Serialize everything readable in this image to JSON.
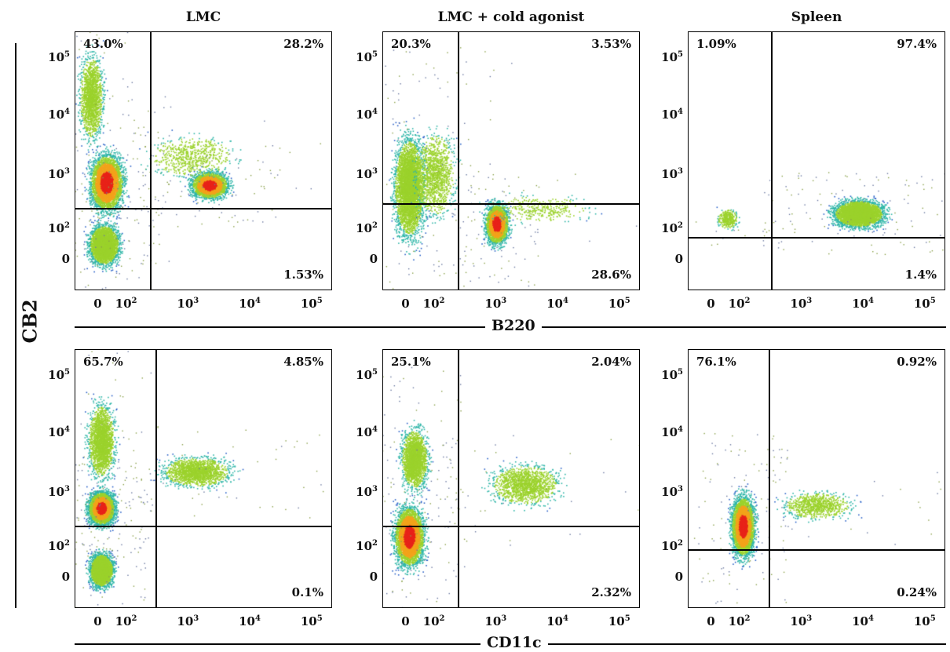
{
  "columns": [
    "LMC",
    "LMC + cold agonist",
    "Spleen"
  ],
  "y_axis_label": "CB2",
  "row_axis_labels": [
    "B220",
    "CD11c"
  ],
  "y_ticks": [
    "10",
    "10",
    "10",
    "10",
    "0"
  ],
  "y_tick_exps": [
    "5",
    "4",
    "3",
    "2",
    ""
  ],
  "x_ticks": [
    "0",
    "10",
    "10",
    "10",
    "10"
  ],
  "x_tick_exps": [
    "",
    "2",
    "3",
    "4",
    "5"
  ],
  "panels": [
    {
      "row": 0,
      "col": 0,
      "ul": "43.0%",
      "ur": "28.2%",
      "lr": "1.53%"
    },
    {
      "row": 0,
      "col": 1,
      "ul": "20.3%",
      "ur": "3.53%",
      "lr": "28.6%"
    },
    {
      "row": 0,
      "col": 2,
      "ul": "1.09%",
      "ur": "97.4%",
      "lr": "1.4%"
    },
    {
      "row": 1,
      "col": 0,
      "ul": "65.7%",
      "ur": "4.85%",
      "lr": "0.1%"
    },
    {
      "row": 1,
      "col": 1,
      "ul": "25.1%",
      "ur": "2.04%",
      "lr": "2.32%"
    },
    {
      "row": 1,
      "col": 2,
      "ul": "76.1%",
      "ur": "0.92%",
      "lr": "0.24%"
    }
  ],
  "chart_data": [
    {
      "type": "scatter",
      "title": "LMC",
      "xlabel": "B220",
      "ylabel": "CB2",
      "populations": [
        {
          "x": 10,
          "y": 800
        },
        {
          "x": 10,
          "y": 50
        },
        {
          "x": 2000,
          "y": 600
        }
      ],
      "quadrants": {
        "ul": "43.0%",
        "ur": "28.2%",
        "lr": "1.53%"
      }
    },
    {
      "type": "scatter",
      "title": "LMC + cold agonist",
      "xlabel": "B220",
      "ylabel": "CB2",
      "populations": [
        {
          "x": 10,
          "y": 150
        },
        {
          "x": 1000,
          "y": 150
        }
      ],
      "quadrants": {
        "ul": "20.3%",
        "ur": "3.53%",
        "lr": "28.6%"
      }
    },
    {
      "type": "scatter",
      "title": "Spleen",
      "xlabel": "B220",
      "ylabel": "CB2",
      "populations": [
        {
          "x": 5000,
          "y": 250
        }
      ],
      "quadrants": {
        "ul": "1.09%",
        "ur": "97.4%",
        "lr": "1.4%"
      }
    },
    {
      "type": "scatter",
      "title": "LMC",
      "xlabel": "CD11c",
      "ylabel": "CB2",
      "populations": [
        {
          "x": 10,
          "y": 700
        },
        {
          "x": 10,
          "y": 60
        },
        {
          "x": 5000,
          "y": 3000
        }
      ],
      "quadrants": {
        "ul": "65.7%",
        "ur": "4.85%",
        "lr": "0.1%"
      }
    },
    {
      "type": "scatter",
      "title": "LMC + cold agonist",
      "xlabel": "CD11c",
      "ylabel": "CB2",
      "populations": [
        {
          "x": 10,
          "y": 150
        },
        {
          "x": 3000,
          "y": 2000
        }
      ],
      "quadrants": {
        "ul": "25.1%",
        "ur": "2.04%",
        "lr": "2.32%"
      }
    },
    {
      "type": "scatter",
      "title": "Spleen",
      "xlabel": "CD11c",
      "ylabel": "CB2",
      "populations": [
        {
          "x": 30,
          "y": 200
        }
      ],
      "quadrants": {
        "ul": "76.1%",
        "ur": "0.92%",
        "lr": "0.24%"
      }
    }
  ]
}
